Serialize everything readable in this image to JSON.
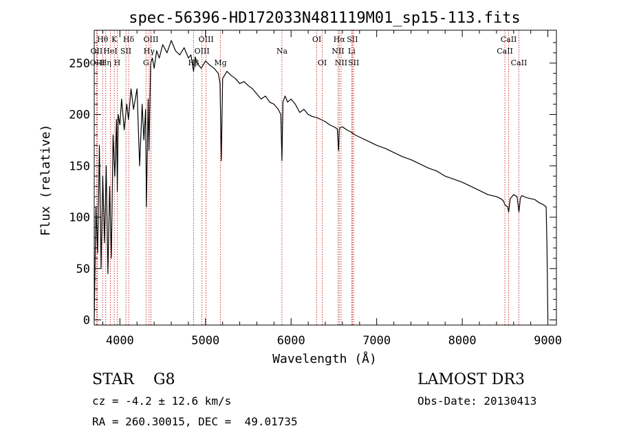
{
  "chart_data": {
    "type": "line",
    "title": "spec-56396-HD172033N481119M01_sp15-113.fits",
    "xlabel": "Wavelength (Å)",
    "ylabel": "Flux (relative)",
    "xlim": [
      3700,
      9100
    ],
    "ylim": [
      -5,
      282
    ],
    "xticks": [
      4000,
      5000,
      6000,
      7000,
      8000,
      9000
    ],
    "yticks": [
      0,
      50,
      100,
      150,
      200,
      250
    ],
    "series": [
      {
        "name": "flux",
        "x": [
          3700,
          3720,
          3740,
          3760,
          3780,
          3800,
          3820,
          3840,
          3860,
          3880,
          3900,
          3920,
          3940,
          3960,
          3970,
          3980,
          4000,
          4020,
          4050,
          4080,
          4100,
          4130,
          4160,
          4200,
          4230,
          4260,
          4280,
          4300,
          4310,
          4330,
          4340,
          4360,
          4380,
          4400,
          4430,
          4460,
          4500,
          4550,
          4600,
          4650,
          4700,
          4750,
          4800,
          4830,
          4860,
          4880,
          4900,
          4950,
          5000,
          5050,
          5100,
          5150,
          5170,
          5185,
          5200,
          5250,
          5300,
          5350,
          5400,
          5450,
          5500,
          5550,
          5600,
          5650,
          5700,
          5750,
          5800,
          5850,
          5880,
          5893,
          5905,
          5930,
          5960,
          6000,
          6050,
          6100,
          6150,
          6200,
          6250,
          6300,
          6350,
          6400,
          6450,
          6500,
          6540,
          6555,
          6563,
          6570,
          6600,
          6650,
          6700,
          6750,
          6800,
          6900,
          7000,
          7100,
          7200,
          7300,
          7400,
          7500,
          7600,
          7700,
          7800,
          7900,
          8000,
          8100,
          8200,
          8300,
          8400,
          8450,
          8480,
          8500,
          8530,
          8542,
          8560,
          8600,
          8640,
          8662,
          8680,
          8700,
          8750,
          8800,
          8850,
          8900,
          8950,
          8980,
          8990,
          9000
        ],
        "values": [
          0,
          110,
          65,
          170,
          50,
          140,
          75,
          150,
          45,
          130,
          60,
          180,
          140,
          195,
          125,
          200,
          190,
          215,
          185,
          210,
          195,
          225,
          205,
          225,
          150,
          210,
          175,
          205,
          110,
          215,
          165,
          250,
          255,
          245,
          262,
          255,
          268,
          260,
          272,
          262,
          258,
          265,
          255,
          258,
          242,
          256,
          250,
          245,
          252,
          248,
          245,
          240,
          230,
          155,
          235,
          242,
          238,
          235,
          230,
          232,
          228,
          225,
          220,
          215,
          218,
          212,
          210,
          205,
          200,
          155,
          212,
          218,
          212,
          215,
          210,
          202,
          205,
          200,
          198,
          197,
          195,
          193,
          190,
          188,
          186,
          165,
          185,
          187,
          188,
          185,
          183,
          180,
          178,
          174,
          170,
          167,
          163,
          159,
          156,
          152,
          148,
          145,
          140,
          137,
          134,
          130,
          126,
          122,
          120,
          118,
          116,
          112,
          110,
          105,
          118,
          122,
          120,
          105,
          119,
          121,
          119,
          118,
          117,
          114,
          112,
          110,
          70,
          0
        ]
      }
    ],
    "lines": [
      {
        "label": "Hθ",
        "wave": 3798,
        "row": 1
      },
      {
        "label": "OII",
        "wave": 3727,
        "row": 2
      },
      {
        "label": "OIII",
        "wave": 3737,
        "row": 3
      },
      {
        "label": "K",
        "wave": 3934,
        "row": 1
      },
      {
        "label": "HeI",
        "wave": 3889,
        "row": 2
      },
      {
        "label": "Hη",
        "wave": 3835,
        "row": 3
      },
      {
        "label": "SII",
        "wave": 4070,
        "row": 2
      },
      {
        "label": "H",
        "wave": 3969,
        "row": 3
      },
      {
        "label": "Hδ",
        "wave": 4102,
        "row": 1
      },
      {
        "label": "OIII",
        "wave": 4363,
        "row": 1
      },
      {
        "label": "Hγ",
        "wave": 4341,
        "row": 2
      },
      {
        "label": "G",
        "wave": 4305,
        "row": 3
      },
      {
        "label": "OIII",
        "wave": 5007,
        "row": 1
      },
      {
        "label": "OIII",
        "wave": 4959,
        "row": 2
      },
      {
        "label": "Hβ",
        "wave": 4861,
        "row": 3
      },
      {
        "label": "Mg",
        "wave": 5175,
        "row": 3
      },
      {
        "label": "Na",
        "wave": 5893,
        "row": 2
      },
      {
        "label": "OI",
        "wave": 6300,
        "row": 1
      },
      {
        "label": "OI",
        "wave": 6364,
        "row": 3
      },
      {
        "label": "Hα",
        "wave": 6563,
        "row": 1
      },
      {
        "label": "SII",
        "wave": 6716,
        "row": 1
      },
      {
        "label": "NII",
        "wave": 6548,
        "row": 2
      },
      {
        "label": "Li",
        "wave": 6708,
        "row": 2
      },
      {
        "label": "NII",
        "wave": 6584,
        "row": 3
      },
      {
        "label": "SII",
        "wave": 6731,
        "row": 3
      },
      {
        "label": "CaII",
        "wave": 8542,
        "row": 1
      },
      {
        "label": "CaII",
        "wave": 8498,
        "row": 2
      },
      {
        "label": "CaII",
        "wave": 8662,
        "row": 3
      }
    ]
  },
  "info": {
    "class_line": "STAR    G8",
    "cz_line": "cz = -4.2 ± 12.6 km/s",
    "radec_line": "RA = 260.30015, DEC =  49.01735",
    "survey": "LAMOST DR3",
    "obs_date": "Obs-Date: 20130413"
  }
}
